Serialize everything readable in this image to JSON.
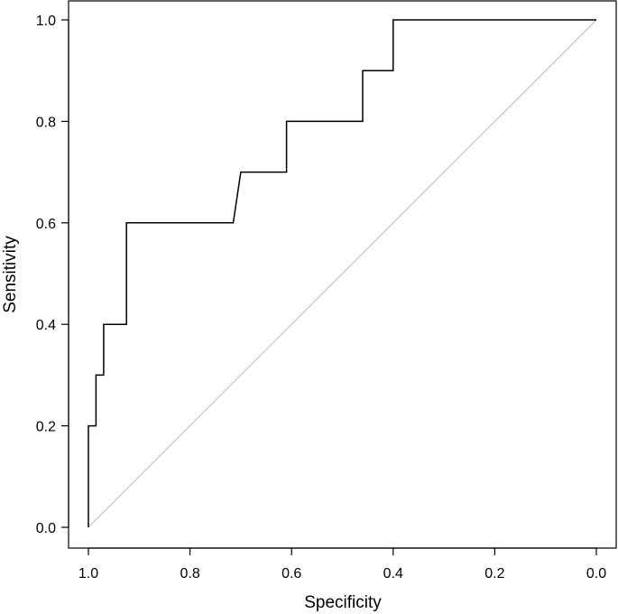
{
  "chart_data": {
    "type": "line",
    "title": "",
    "xlabel": "Specificity",
    "ylabel": "Sensitivity",
    "xlim": [
      1.04,
      -0.04
    ],
    "ylim": [
      -0.04,
      1.04
    ],
    "x_ticks": [
      "1.0",
      "0.8",
      "0.6",
      "0.4",
      "0.2",
      "0.0"
    ],
    "x_tick_values": [
      1.0,
      0.8,
      0.6,
      0.4,
      0.2,
      0.0
    ],
    "y_ticks": [
      "0.0",
      "0.2",
      "0.4",
      "0.6",
      "0.8",
      "1.0"
    ],
    "y_tick_values": [
      0.0,
      0.2,
      0.4,
      0.6,
      0.8,
      1.0
    ],
    "grid": false,
    "series": [
      {
        "specificity": [
          1.0,
          1.0,
          0.985,
          0.985,
          0.97,
          0.97,
          0.95,
          0.925,
          0.925,
          0.715,
          0.7,
          0.61,
          0.61,
          0.46,
          0.46,
          0.4,
          0.4,
          0.0
        ],
        "sensitivity": [
          0.0,
          0.2,
          0.2,
          0.3,
          0.3,
          0.4,
          0.4,
          0.4,
          0.6,
          0.6,
          0.7,
          0.7,
          0.8,
          0.8,
          0.9,
          0.9,
          1.0,
          1.0
        ],
        "color": "#000000"
      },
      {
        "specificity": [
          1.0,
          0.0
        ],
        "sensitivity": [
          0.0,
          1.0
        ],
        "color": "#bbbbbb"
      }
    ]
  }
}
